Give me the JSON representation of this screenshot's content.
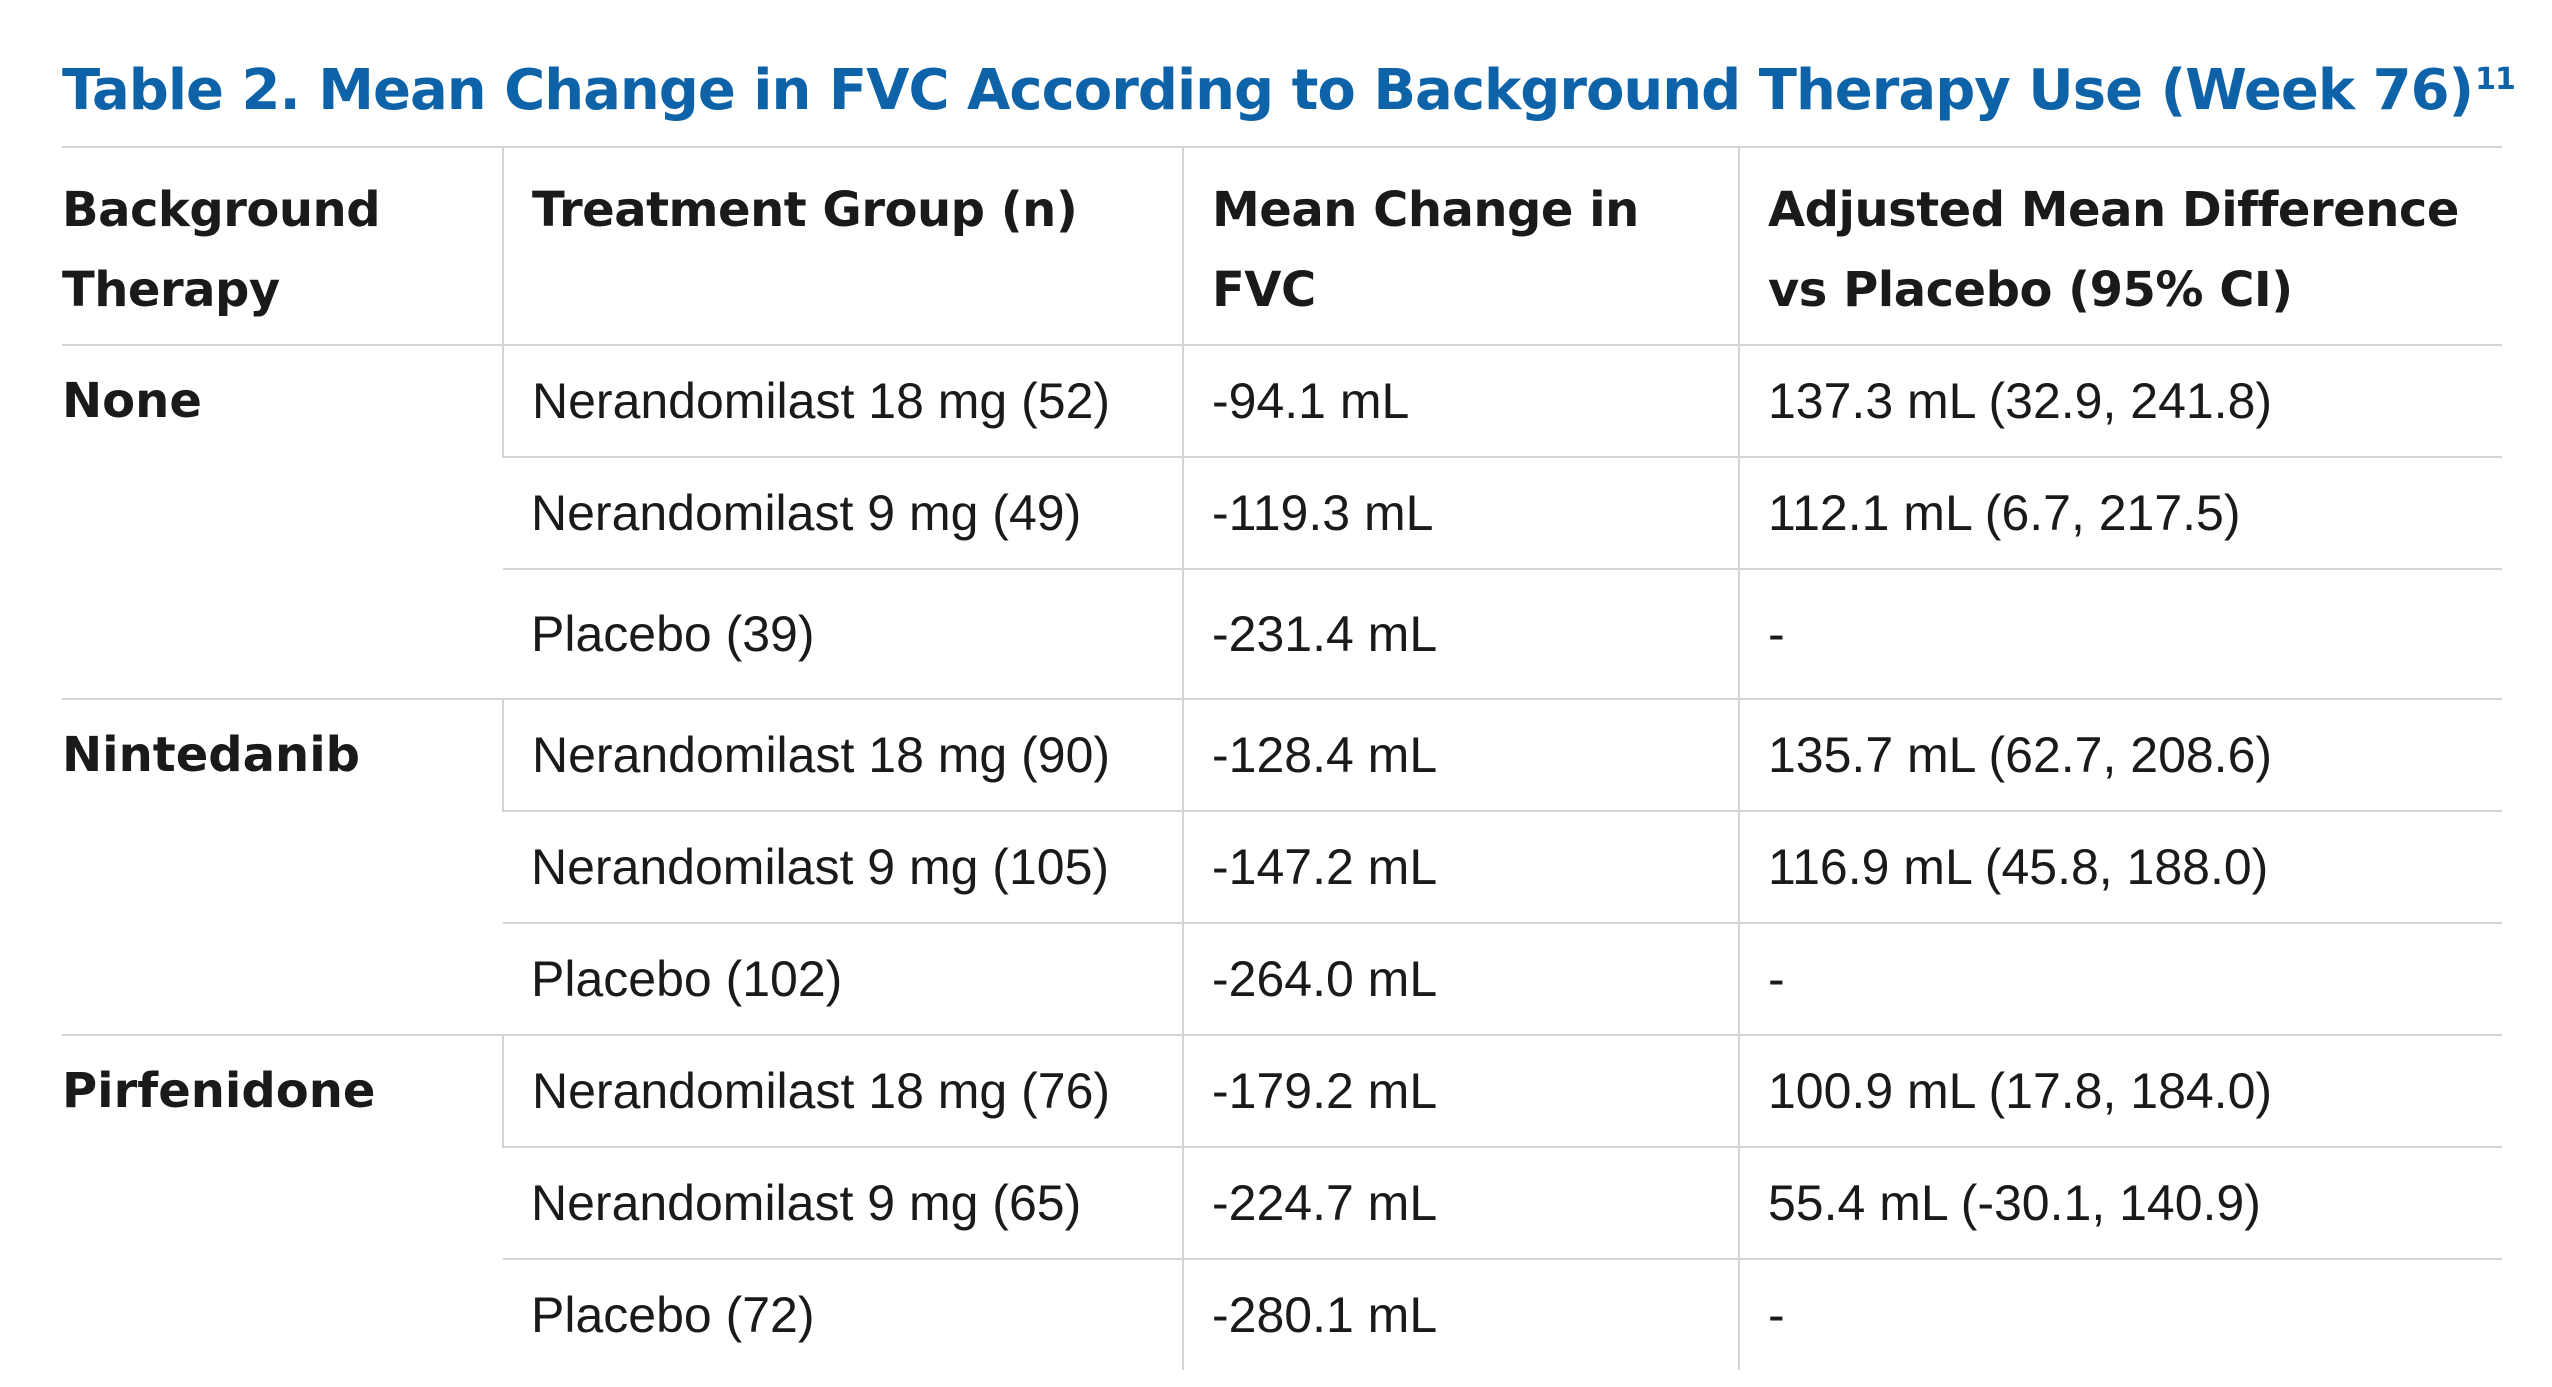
{
  "title": "Table 2. Mean Change in FVC According to Background Therapy Use (Week 76)",
  "title_ref": "11",
  "headers": [
    "Background Therapy",
    "Treatment Group (n)",
    "Mean Change in FVC",
    "Adjusted Mean Difference vs Placebo (95% CI)"
  ],
  "groups": [
    {
      "therapy": "None",
      "rows": [
        {
          "group": "Nerandomilast 18 mg (52)",
          "mean": "-94.1 mL",
          "diff": "137.3 mL (32.9, 241.8)"
        },
        {
          "group": "Nerandomilast 9 mg (49)",
          "mean": "-119.3 mL",
          "diff": "112.1 mL (6.7, 217.5)"
        },
        {
          "group": "Placebo (39)",
          "mean": "-231.4 mL",
          "diff": "-"
        }
      ]
    },
    {
      "therapy": "Nintedanib",
      "rows": [
        {
          "group": "Nerandomilast 18 mg (90)",
          "mean": "-128.4 mL",
          "diff": "135.7 mL (62.7, 208.6)"
        },
        {
          "group": "Nerandomilast 9 mg (105)",
          "mean": "-147.2 mL",
          "diff": "116.9 mL (45.8, 188.0)"
        },
        {
          "group": "Placebo (102)",
          "mean": "-264.0 mL",
          "diff": "-"
        }
      ]
    },
    {
      "therapy": "Pirfenidone",
      "rows": [
        {
          "group": "Nerandomilast 18 mg (76)",
          "mean": "-179.2 mL",
          "diff": "100.9 mL (17.8, 184.0)"
        },
        {
          "group": "Nerandomilast 9 mg (65)",
          "mean": "-224.7 mL",
          "diff": "55.4 mL (-30.1, 140.9)"
        },
        {
          "group": "Placebo (72)",
          "mean": "-280.1 mL",
          "diff": "-"
        }
      ]
    }
  ]
}
